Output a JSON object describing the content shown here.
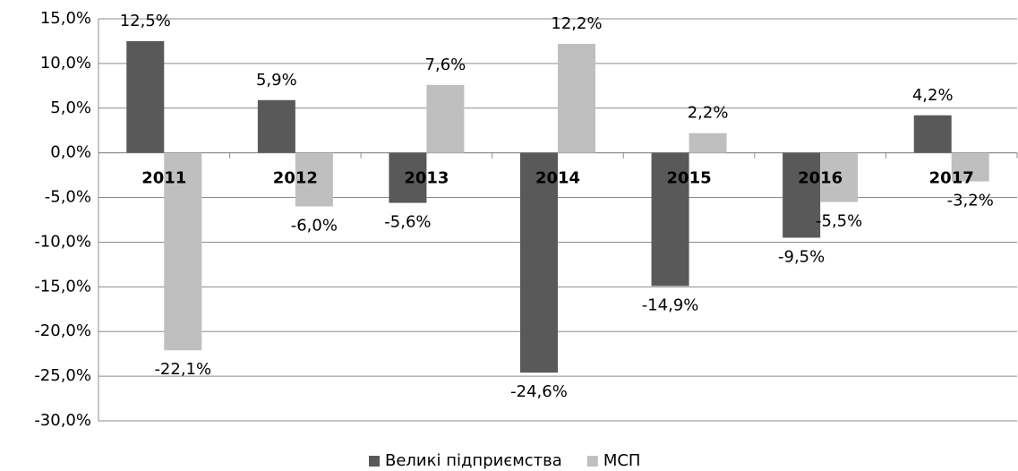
{
  "chart_data": {
    "type": "bar",
    "categories": [
      "2011",
      "2012",
      "2013",
      "2014",
      "2015",
      "2016",
      "2017"
    ],
    "series": [
      {
        "name": "Великі підприємства",
        "color": "#595959",
        "values": [
          12.5,
          5.9,
          -5.6,
          -24.6,
          -14.9,
          -9.5,
          4.2
        ],
        "value_labels": [
          "12,5%",
          "5,9%",
          "-5,6%",
          "-24,6%",
          "-14,9%",
          "-9,5%",
          "4,2%"
        ]
      },
      {
        "name": "МСП",
        "color": "#bfbfbf",
        "values": [
          -22.1,
          -6.0,
          7.6,
          12.2,
          2.2,
          -5.5,
          -3.2
        ],
        "value_labels": [
          "-22,1%",
          "-6,0%",
          "7,6%",
          "12,2%",
          "2,2%",
          "-5,5%",
          "-3,2%"
        ]
      }
    ],
    "ylim": [
      -30,
      15
    ],
    "yticks": [
      {
        "value": -30,
        "label": "-30,0%"
      },
      {
        "value": -25,
        "label": "-25,0%"
      },
      {
        "value": -20,
        "label": "-20,0%"
      },
      {
        "value": -15,
        "label": "-15,0%"
      },
      {
        "value": -10,
        "label": "-10,0%"
      },
      {
        "value": -5,
        "label": "-5,0%"
      },
      {
        "value": 0,
        "label": "0,0%"
      },
      {
        "value": 5,
        "label": "5,0%"
      },
      {
        "value": 10,
        "label": "10,0%"
      },
      {
        "value": 15,
        "label": "15,0%"
      }
    ],
    "grid": true,
    "legend": "bottom"
  }
}
